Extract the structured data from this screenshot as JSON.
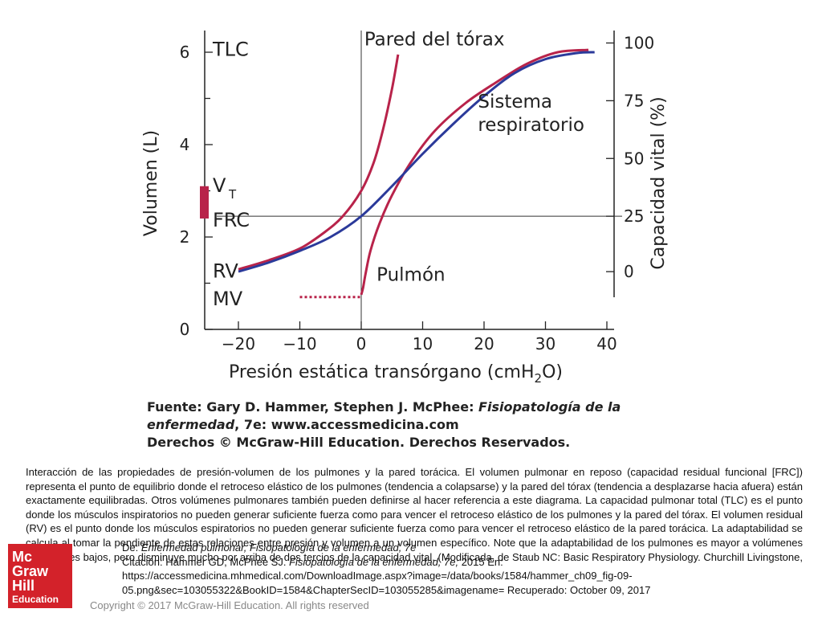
{
  "chart_data": {
    "type": "line",
    "xlabel_main": "Presión estática transórgano (cmH",
    "xlabel_sub": "2",
    "xlabel_end": "O)",
    "ylabel_left": "Volumen (L)",
    "ylabel_right": "Capacidad vital (%)",
    "xlim": [
      -25,
      40
    ],
    "ylim": [
      0,
      6.5
    ],
    "x_ticks": [
      "−20",
      "−10",
      "0",
      "10",
      "20",
      "30",
      "40"
    ],
    "x_tick_values": [
      -20,
      -10,
      0,
      10,
      20,
      30,
      40
    ],
    "y_ticks": [
      "0",
      "2",
      "4",
      "6"
    ],
    "y_tick_values": [
      0,
      2,
      4,
      6
    ],
    "right_ticks": [
      "0",
      "25",
      "50",
      "75",
      "100"
    ],
    "right_tick_volumes": [
      1.25,
      2.45,
      3.7,
      4.95,
      6.2
    ],
    "volume_labels": [
      {
        "text": "TLC",
        "y": 6.1
      },
      {
        "text": "FRC",
        "y": 2.4
      },
      {
        "text": "RV",
        "y": 1.3
      },
      {
        "text": "MV",
        "y": 0.7
      }
    ],
    "vt_label": "V",
    "vt_sub": "T",
    "vt_range": [
      2.4,
      3.1
    ],
    "reference_lines": {
      "x": 0,
      "y": 2.45
    },
    "series": [
      {
        "name": "Pared del tórax",
        "color": "#b8234a",
        "points": [
          [
            -20,
            1.3
          ],
          [
            -15,
            1.5
          ],
          [
            -10,
            1.75
          ],
          [
            -6,
            2.1
          ],
          [
            -3,
            2.45
          ],
          [
            0,
            3.0
          ],
          [
            2,
            3.6
          ],
          [
            3.5,
            4.3
          ],
          [
            5,
            5.2
          ],
          [
            6,
            5.95
          ]
        ]
      },
      {
        "name": "Pulmón",
        "color": "#b8234a",
        "points": [
          [
            0,
            0.75
          ],
          [
            0.3,
            0.9
          ],
          [
            0.7,
            1.2
          ],
          [
            1.5,
            1.7
          ],
          [
            3,
            2.3
          ],
          [
            5,
            2.9
          ],
          [
            8,
            3.6
          ],
          [
            12,
            4.3
          ],
          [
            17,
            4.9
          ],
          [
            22,
            5.35
          ],
          [
            27,
            5.75
          ],
          [
            32,
            6.0
          ],
          [
            37,
            6.05
          ]
        ]
      },
      {
        "name": "Sistema respiratorio",
        "color": "#2b3a9a",
        "points": [
          [
            -20,
            1.25
          ],
          [
            -15,
            1.45
          ],
          [
            -10,
            1.7
          ],
          [
            -5,
            2.0
          ],
          [
            0,
            2.45
          ],
          [
            5,
            3.1
          ],
          [
            10,
            3.8
          ],
          [
            15,
            4.45
          ],
          [
            20,
            5.05
          ],
          [
            25,
            5.55
          ],
          [
            30,
            5.85
          ],
          [
            35,
            5.98
          ],
          [
            38,
            6.0
          ]
        ]
      }
    ],
    "dashed_segment": {
      "color": "#b8234a",
      "points": [
        [
          -10,
          0.7
        ],
        [
          0,
          0.7
        ]
      ]
    }
  },
  "source": {
    "line1_a": "Fuente: Gary D. Hammer, Stephen J. McPhee: ",
    "line1_b": "Fisiopatología de la",
    "line2_a": "enfermedad",
    "line2_b": ", 7e: www.accessmedicina.com",
    "line3": "Derechos © McGraw-Hill Education. Derechos Reservados."
  },
  "caption": "Interacción de las propiedades de presión-volumen de los pulmones y la pared torácica. El volumen pulmonar en reposo (capacidad residual funcional [FRC]) representa el punto de equilibrio donde el retroceso elástico de los pulmones (tendencia a colapsarse) y la pared del tórax (tendencia a desplazarse hacia afuera) están exactamente equilibradas. Otros volúmenes pulmonares también pueden definirse al hacer referencia a este diagrama. La capacidad pulmonar total (TLC) es el punto donde los músculos inspiratorios no pueden generar suficiente fuerza como para vencer el retroceso elástico de los pulmones y la pared del tórax. El volumen residual (RV) es el punto donde los músculos espiratorios no pueden generar suficiente fuerza como para vencer el retroceso elástico de la pared torácica. La adaptabilidad se calcula al tomar la pendiente de estas relaciones entre presión y volumen a un volumen específico. Note que la adaptabilidad de los pulmones es mayor a volúmenes pulmonares bajos, pero disminuye mucho por arriba de dos tercios de la capacidad vital. (Modificada, de Staub NC: Basic Respiratory Physiology. Churchill Livingstone, 1991.)",
  "citation": {
    "line1_a": "De: ",
    "line1_b": "Enfermedad pulmonar, Fisiopatología de la enfermedad, 7e",
    "line2_a": "Citación: Hammer GD, McPhee SJ. ",
    "line2_b": "Fisiopatología de la enfermedad, 7e;",
    "line2_c": " 2015 En:",
    "line3": "https://accessmedicina.mhmedical.com/DownloadImage.aspx?image=/data/books/1584/hammer_ch09_fig-09-",
    "line4": "05.png&sec=103055322&BookID=1584&ChapterSecID=103055285&imagename= Recuperado: October 09, 2017"
  },
  "logo": {
    "line1": "Mc",
    "line2": "Graw",
    "line3": "Hill",
    "line4": "Education"
  },
  "copyright": "Copyright © 2017 McGraw-Hill Education. All rights reserved"
}
